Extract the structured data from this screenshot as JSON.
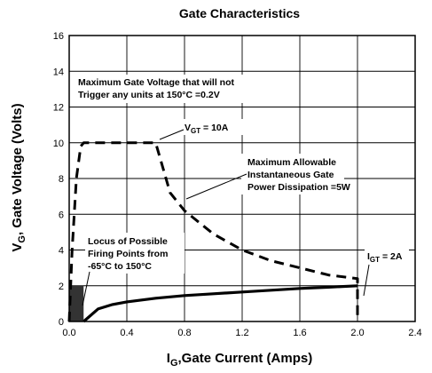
{
  "chart_data": {
    "type": "line",
    "title": "Gate Characteristics",
    "xlabel": "I",
    "xlabel_sub": "G",
    "xlabel_rest": ",Gate Current (Amps)",
    "ylabel": "V",
    "ylabel_sub": "G",
    "ylabel_rest": ", Gate Voltage (Volts)",
    "xlim": [
      0,
      2.4
    ],
    "ylim": [
      0,
      16
    ],
    "x_ticks": [
      "0.0",
      "0.4",
      "0.8",
      "1.2",
      "1.6",
      "2.0",
      "2.4"
    ],
    "y_ticks": [
      "0",
      "2",
      "4",
      "6",
      "8",
      "10",
      "12",
      "14",
      "16"
    ],
    "grid": true,
    "series": [
      {
        "style": "solid",
        "x": [
          0.1,
          0.2,
          0.3,
          0.4,
          0.6,
          0.8,
          1.0,
          1.2,
          1.4,
          1.6,
          1.8,
          2.0
        ],
        "y": [
          0.0,
          0.7,
          0.95,
          1.1,
          1.3,
          1.45,
          1.55,
          1.65,
          1.75,
          1.85,
          1.92,
          2.0
        ]
      },
      {
        "style": "dashed",
        "x": [
          0.0,
          0.02,
          0.05,
          0.08,
          0.1,
          0.2,
          0.4,
          0.6,
          0.7,
          0.8,
          1.0,
          1.2,
          1.4,
          1.6,
          1.8,
          2.0,
          2.0
        ],
        "y": [
          0.0,
          4.0,
          8.0,
          9.8,
          10.0,
          10.0,
          10.0,
          10.0,
          7.2,
          6.2,
          4.9,
          4.0,
          3.4,
          3.0,
          2.6,
          2.4,
          0.0
        ]
      }
    ],
    "firing_region": {
      "x": [
        0.0,
        0.1
      ],
      "y": [
        0.0,
        2.0
      ]
    },
    "annotations": {
      "max_voltage_line1": "Maximum Gate Voltage that will not",
      "max_voltage_line2": "Trigger any units at 150°C =0.2V",
      "vgt_main": "V",
      "vgt_sub": "GT",
      "vgt_rest": " = 10A",
      "power_line1": "Maximum Allowable",
      "power_line2": "Instantaneous Gate",
      "power_line3": "Power Dissipation =5W",
      "locus_line1": "Locus of Possible",
      "locus_line2": "Firing Points from",
      "locus_line3": "-65°C to 150°C",
      "igt_main": "I",
      "igt_sub": "GT",
      "igt_rest": " = 2A"
    }
  }
}
